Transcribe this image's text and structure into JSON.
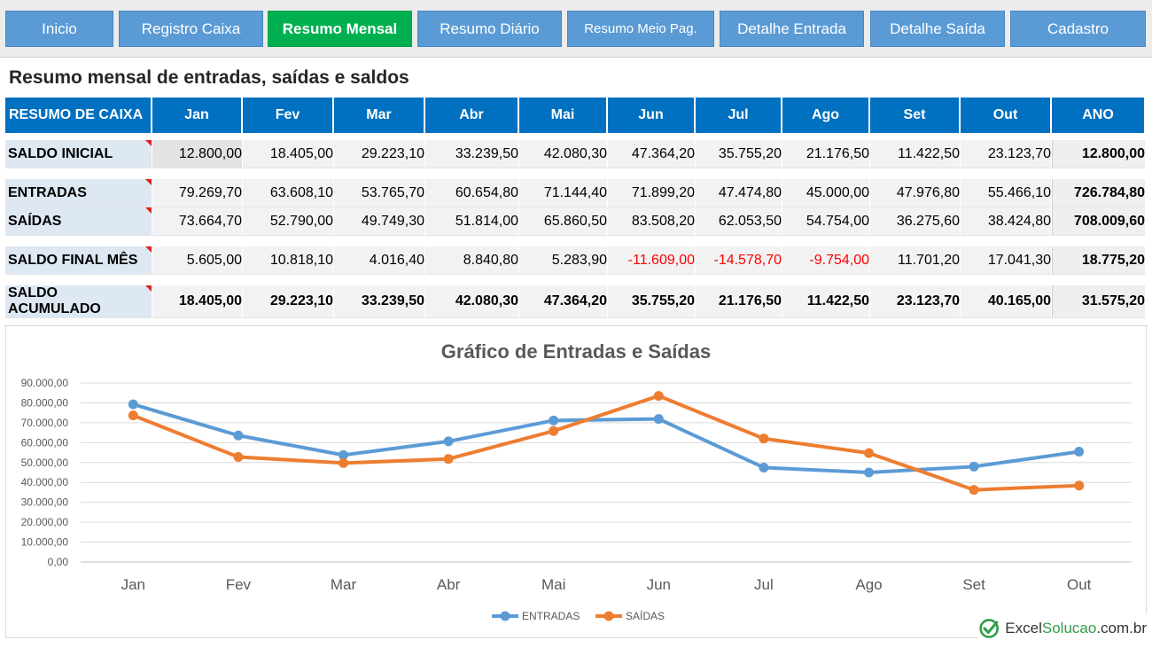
{
  "nav": [
    {
      "label": "Inicio",
      "active": false
    },
    {
      "label": "Registro Caixa",
      "active": false
    },
    {
      "label": "Resumo Mensal",
      "active": true
    },
    {
      "label": "Resumo Diário",
      "active": false
    },
    {
      "label": "Resumo Meio Pag.",
      "active": false
    },
    {
      "label": "Detalhe Entrada",
      "active": false
    },
    {
      "label": "Detalhe Saída",
      "active": false
    },
    {
      "label": "Cadastro",
      "active": false
    }
  ],
  "page": {
    "title": "Resumo mensal de entradas, saídas e saldos"
  },
  "table": {
    "header": [
      "RESUMO DE CAIXA",
      "Jan",
      "Fev",
      "Mar",
      "Abr",
      "Mai",
      "Jun",
      "Jul",
      "Ago",
      "Set",
      "Out",
      "ANO"
    ],
    "rows": [
      {
        "label": "SALDO INICIAL",
        "values": [
          "12.800,00",
          "18.405,00",
          "29.223,10",
          "33.239,50",
          "42.080,30",
          "47.364,20",
          "35.755,20",
          "21.176,50",
          "11.422,50",
          "23.123,70"
        ],
        "ano": "12.800,00"
      },
      {
        "label": "ENTRADAS",
        "values": [
          "79.269,70",
          "63.608,10",
          "53.765,70",
          "60.654,80",
          "71.144,40",
          "71.899,20",
          "47.474,80",
          "45.000,00",
          "47.976,80",
          "55.466,10"
        ],
        "ano": "726.784,80"
      },
      {
        "label": "SAÍDAS",
        "values": [
          "73.664,70",
          "52.790,00",
          "49.749,30",
          "51.814,00",
          "65.860,50",
          "83.508,20",
          "62.053,50",
          "54.754,00",
          "36.275,60",
          "38.424,80"
        ],
        "ano": "708.009,60"
      },
      {
        "label": "SALDO FINAL MÊS",
        "values": [
          "5.605,00",
          "10.818,10",
          "4.016,40",
          "8.840,80",
          "5.283,90",
          "-11.609,00",
          "-14.578,70",
          "-9.754,00",
          "11.701,20",
          "17.041,30"
        ],
        "ano": "18.775,20"
      },
      {
        "label": "SALDO ACUMULADO",
        "values": [
          "18.405,00",
          "29.223,10",
          "33.239,50",
          "42.080,30",
          "47.364,20",
          "35.755,20",
          "21.176,50",
          "11.422,50",
          "23.123,70",
          "40.165,00"
        ],
        "ano": "31.575,20"
      }
    ]
  },
  "chart_data": {
    "type": "line",
    "title": "Gráfico de Entradas e Saídas",
    "categories": [
      "Jan",
      "Fev",
      "Mar",
      "Abr",
      "Mai",
      "Jun",
      "Jul",
      "Ago",
      "Set",
      "Out"
    ],
    "yticks": [
      "0,00",
      "10.000,00",
      "20.000,00",
      "30.000,00",
      "40.000,00",
      "50.000,00",
      "60.000,00",
      "70.000,00",
      "80.000,00",
      "90.000,00"
    ],
    "ylim": [
      0,
      90000
    ],
    "grid": true,
    "legend": "bottom",
    "series": [
      {
        "name": "ENTRADAS",
        "color": "#5b9bd5",
        "values": [
          79269.7,
          63608.1,
          53765.7,
          60654.8,
          71144.4,
          71899.2,
          47474.8,
          45000,
          47976.8,
          55466.1
        ]
      },
      {
        "name": "SAÍDAS",
        "color": "#ed7d31",
        "values": [
          73664.7,
          52790,
          49749.3,
          51814,
          65860.5,
          83508.2,
          62053.5,
          54754,
          36275.6,
          38424.8
        ]
      }
    ]
  },
  "logo": {
    "text_a": "Excel",
    "text_b": "Solucao",
    "text_c": ".com.br",
    "icon": "check-circle-icon"
  }
}
